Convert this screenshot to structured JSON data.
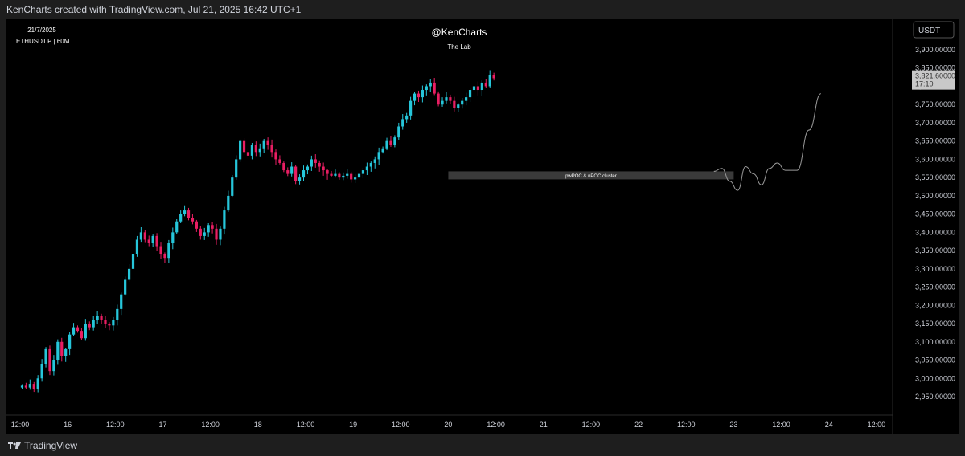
{
  "header": {
    "credit": "KenCharts created with TradingView.com, Jul 21, 2025 16:42 UTC+1"
  },
  "overlay": {
    "date": "21/7/2025",
    "symbol": "ETHUSDT.P | 60M",
    "author": "@KenCharts",
    "subtitle": "The Lab"
  },
  "currency": "USDT",
  "zone_label": "pwPOC & nPOC cluster",
  "current_price": {
    "value": "3,821.60000",
    "countdown": "17:10"
  },
  "footer": {
    "brand": "TradingView"
  },
  "colors": {
    "up": "#26c6da",
    "down": "#e91e63",
    "background": "#000000",
    "zone": "#3a3a3a",
    "price_tag": "#c8c8c8"
  },
  "chart_data": {
    "type": "candlestick",
    "symbol": "ETHUSDT.P",
    "interval": "60M",
    "ylim": [
      2905,
      3940
    ],
    "y_ticks": [
      2950,
      3000,
      3050,
      3100,
      3150,
      3200,
      3250,
      3300,
      3350,
      3400,
      3450,
      3500,
      3550,
      3600,
      3650,
      3700,
      3750,
      3800,
      3850,
      3900
    ],
    "y_tick_labels": [
      "2,950.00000",
      "3,000.00000",
      "3,050.00000",
      "3,100.00000",
      "3,150.00000",
      "3,200.00000",
      "3,250.00000",
      "3,300.00000",
      "3,350.00000",
      "3,400.00000",
      "3,450.00000",
      "3,500.00000",
      "3,550.00000",
      "3,600.00000",
      "3,650.00000",
      "3,700.00000",
      "3,750.00000",
      "3,800.00000",
      "3,850.00000",
      "3,900.00000"
    ],
    "x_ticks": [
      "12:00",
      "16",
      "12:00",
      "17",
      "12:00",
      "18",
      "12:00",
      "19",
      "12:00",
      "20",
      "12:00",
      "21",
      "12:00",
      "22",
      "12:00",
      "23",
      "12:00",
      "24",
      "12:00"
    ],
    "x_tick_hours": [
      0,
      12,
      24,
      36,
      48,
      60,
      72,
      84,
      96,
      108,
      120,
      132,
      144,
      156,
      168,
      180,
      192,
      204,
      216
    ],
    "candle_closes": [
      2980,
      2975,
      2985,
      2970,
      3000,
      3040,
      3080,
      3020,
      3050,
      3100,
      3060,
      3080,
      3120,
      3140,
      3130,
      3110,
      3150,
      3140,
      3160,
      3170,
      3160,
      3150,
      3145,
      3160,
      3190,
      3230,
      3270,
      3300,
      3340,
      3380,
      3400,
      3380,
      3370,
      3390,
      3360,
      3340,
      3330,
      3370,
      3400,
      3430,
      3450,
      3460,
      3440,
      3430,
      3410,
      3390,
      3400,
      3420,
      3410,
      3380,
      3410,
      3460,
      3500,
      3550,
      3600,
      3650,
      3620,
      3610,
      3640,
      3620,
      3630,
      3650,
      3640,
      3620,
      3600,
      3590,
      3570,
      3560,
      3580,
      3540,
      3550,
      3570,
      3580,
      3600,
      3590,
      3580,
      3570,
      3560,
      3555,
      3560,
      3550,
      3555,
      3560,
      3545,
      3550,
      3560,
      3570,
      3580,
      3590,
      3600,
      3620,
      3630,
      3650,
      3640,
      3660,
      3690,
      3710,
      3720,
      3760,
      3780,
      3770,
      3790,
      3800,
      3810,
      3780,
      3750,
      3760,
      3770,
      3760,
      3740,
      3750,
      3760,
      3770,
      3790,
      3800,
      3790,
      3810,
      3800,
      3830,
      3822
    ],
    "zone": {
      "from_hour": 108,
      "to_hour": 180,
      "low": 3545,
      "high": 3567,
      "label": "pwPOC & nPOC cluster"
    },
    "projection": [
      [
        175,
        3567
      ],
      [
        177,
        3575
      ],
      [
        179,
        3540
      ],
      [
        181,
        3515
      ],
      [
        183,
        3580
      ],
      [
        185,
        3560
      ],
      [
        187,
        3530
      ],
      [
        189,
        3575
      ],
      [
        191,
        3590
      ],
      [
        193,
        3570
      ],
      [
        196,
        3570
      ],
      [
        199,
        3680
      ],
      [
        202,
        3780
      ]
    ],
    "current_price": 3821.6
  }
}
